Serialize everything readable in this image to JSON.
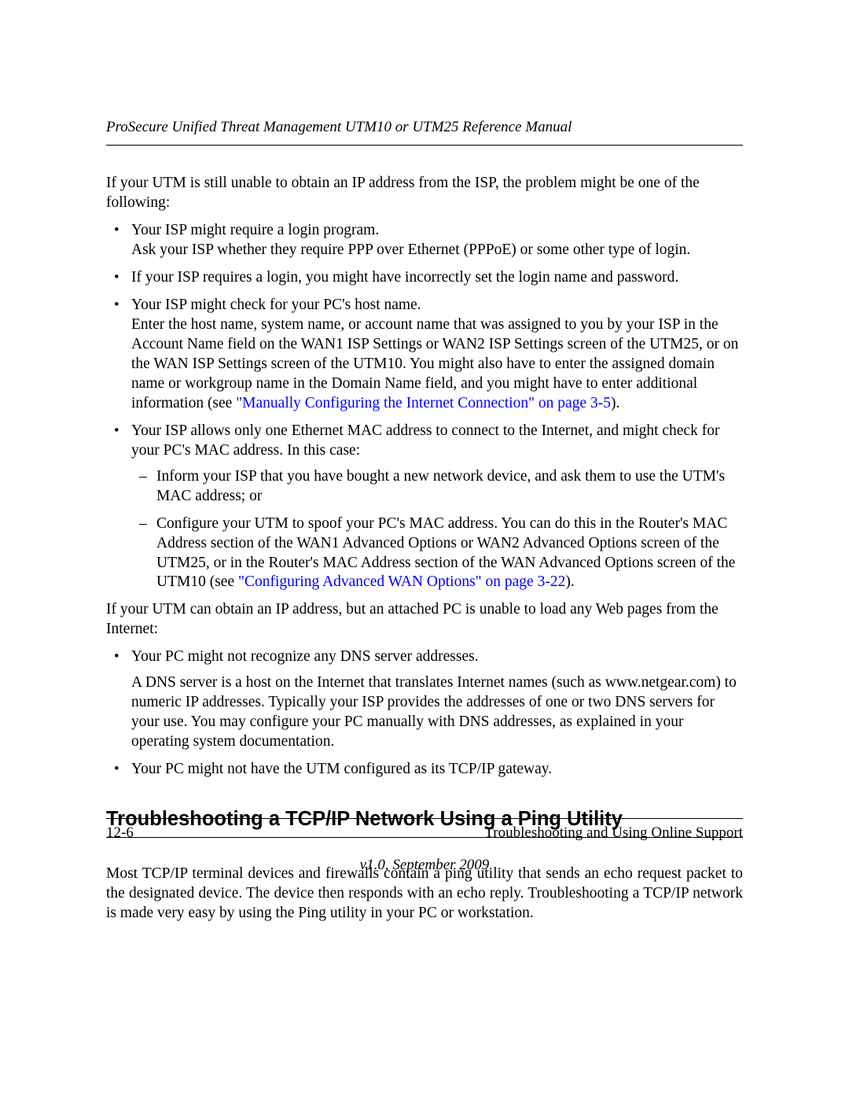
{
  "colors": {
    "text": "#000000",
    "link": "#0000ff",
    "background": "#ffffff",
    "rule": "#000000"
  },
  "typography": {
    "body_family": "Times New Roman",
    "body_size_pt": 15,
    "heading_family": "Arial",
    "heading_size_pt": 19,
    "heading_weight": "bold",
    "italic_header_footer": true
  },
  "header": {
    "running_title": "ProSecure Unified Threat Management UTM10 or UTM25 Reference Manual"
  },
  "intro_para": "If your UTM is still unable to obtain an IP address from the ISP, the problem might be one of the following:",
  "bullets1": [
    {
      "line1": "Your ISP might require a login program.",
      "line2": "Ask your ISP whether they require PPP over Ethernet (PPPoE) or some other type of login."
    },
    {
      "line1": "If your ISP requires a login, you might have incorrectly set the login name and password."
    },
    {
      "line1": "Your ISP might check for your PC's host name.",
      "line2_pre": "Enter the host name, system name, or account name that was assigned to you by your ISP in the Account Name field on the WAN1 ISP Settings or WAN2 ISP Settings screen of the UTM25, or on the WAN ISP Settings screen of the UTM10. You might also have to enter the assigned domain name or workgroup name in the Domain Name field, and you might have to enter additional information (see ",
      "link_text": "\"Manually Configuring the Internet Connection\" on page 3-5",
      "line2_post": ")."
    },
    {
      "line1": "Your ISP allows only one Ethernet MAC address to connect to the Internet, and might check for your PC's MAC address. In this case:",
      "sub": [
        {
          "text": "Inform your ISP that you have bought a new network device, and ask them to use the UTM's MAC address; or"
        },
        {
          "pre": "Configure your UTM to spoof your PC's MAC address. You can do this in the Router's MAC Address section of the WAN1 Advanced Options or WAN2 Advanced Options screen of the UTM25, or in the Router's MAC Address section of the WAN Advanced Options screen of the UTM10 (see ",
          "link_text": "\"Configuring Advanced WAN Options\" on page 3-22",
          "post": ")."
        }
      ]
    }
  ],
  "mid_para": "If your UTM can obtain an IP address, but an attached PC is unable to load any Web pages from the Internet:",
  "bullets2": [
    {
      "line1": "Your PC might not recognize any DNS server addresses.",
      "para": "A DNS server is a host on the Internet that translates Internet names (such as www.netgear.com) to numeric IP addresses. Typically your ISP provides the addresses of one or two DNS servers for your use. You may configure your PC manually with DNS addresses, as explained in your operating system documentation."
    },
    {
      "line1": "Your PC might not have the UTM configured as its TCP/IP gateway."
    }
  ],
  "section_heading": "Troubleshooting a TCP/IP Network Using a Ping Utility",
  "section_para": "Most TCP/IP terminal devices and firewalls contain a ping utility that sends an echo request packet to the designated device. The device then responds with an echo reply. Troubleshooting a TCP/IP network is made very easy by using the Ping utility in your PC or workstation.",
  "footer": {
    "page_number": "12-6",
    "chapter_title": "Troubleshooting and Using Online Support",
    "version_line": "v1.0, September 2009"
  }
}
